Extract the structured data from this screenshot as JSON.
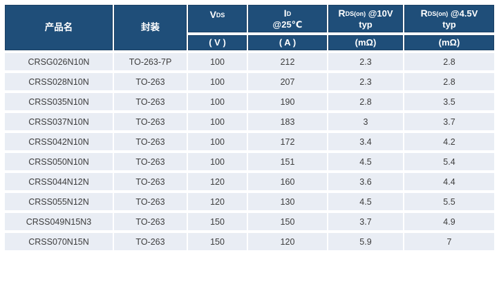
{
  "colors": {
    "header_bg": "#1F4E79",
    "header_border": "#1A3F63",
    "header_text": "#FFFFFF",
    "row_bg": "#E9EDF4",
    "row_text": "#3C3C3C",
    "page_bg": "#FFFFFF"
  },
  "header": {
    "product": "产品名",
    "package": "封装",
    "vds": {
      "sym": "V",
      "sub": "DS",
      "rest": "",
      "line2": "",
      "unit": "( V )"
    },
    "id": {
      "sym": "I",
      "sub": "D",
      "rest": "",
      "line2": "@25℃",
      "unit": "( A )"
    },
    "rds10": {
      "sym": "R",
      "sub": "DS(on)",
      "rest": " @10V",
      "line2": "typ",
      "unit": "(mΩ)"
    },
    "rds45": {
      "sym": "R",
      "sub": "DS(on)",
      "rest": " @4.5V",
      "line2": "typ",
      "unit": "(mΩ)"
    }
  },
  "rows": [
    {
      "product": "CRSG026N10N",
      "package": "TO-263-7P",
      "vds": "100",
      "id": "212",
      "rds10": "2.3",
      "rds45": "2.8"
    },
    {
      "product": "CRSS028N10N",
      "package": "TO-263",
      "vds": "100",
      "id": "207",
      "rds10": "2.3",
      "rds45": "2.8"
    },
    {
      "product": "CRSS035N10N",
      "package": "TO-263",
      "vds": "100",
      "id": "190",
      "rds10": "2.8",
      "rds45": "3.5"
    },
    {
      "product": "CRSS037N10N",
      "package": "TO-263",
      "vds": "100",
      "id": "183",
      "rds10": "3",
      "rds45": "3.7"
    },
    {
      "product": "CRSS042N10N",
      "package": "TO-263",
      "vds": "100",
      "id": "172",
      "rds10": "3.4",
      "rds45": "4.2"
    },
    {
      "product": "CRSS050N10N",
      "package": "TO-263",
      "vds": "100",
      "id": "151",
      "rds10": "4.5",
      "rds45": "5.4"
    },
    {
      "product": "CRSS044N12N",
      "package": "TO-263",
      "vds": "120",
      "id": "160",
      "rds10": "3.6",
      "rds45": "4.4"
    },
    {
      "product": "CRSS055N12N",
      "package": "TO-263",
      "vds": "120",
      "id": "130",
      "rds10": "4.5",
      "rds45": "5.5"
    },
    {
      "product": "CRSS049N15N3",
      "package": "TO-263",
      "vds": "150",
      "id": "150",
      "rds10": "3.7",
      "rds45": "4.9"
    },
    {
      "product": "CRSS070N15N",
      "package": "TO-263",
      "vds": "150",
      "id": "120",
      "rds10": "5.9",
      "rds45": "7"
    }
  ]
}
